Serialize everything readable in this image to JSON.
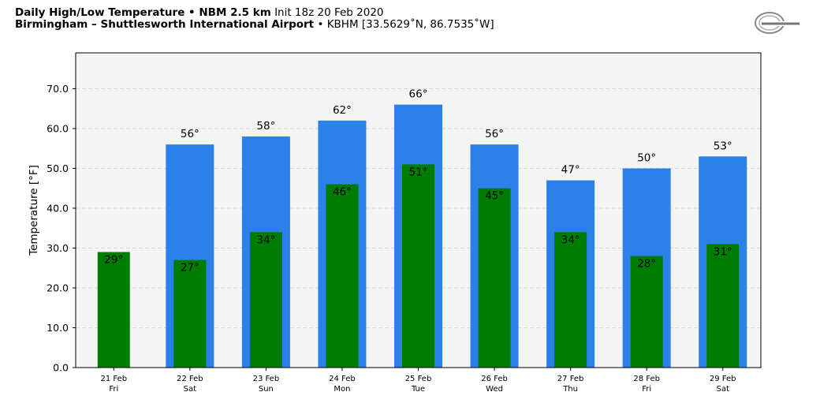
{
  "header": {
    "title_bold": "Daily High/Low Temperature • NBM 2.5 km",
    "title_rest": "Init 18z 20 Feb 2020",
    "location_bold": "Birmingham – Shuttlesworth International Airport",
    "location_rest": "• KBHM [33.5629˚N, 86.7535˚W]"
  },
  "logo": {
    "icon": "weatherbell-logo"
  },
  "chart_data": {
    "type": "bar",
    "ylabel": "Temperature [°F]",
    "xlabel": "",
    "ylim": [
      0,
      79
    ],
    "yticks": [
      "0.0",
      "10.0",
      "20.0",
      "30.0",
      "40.0",
      "50.0",
      "60.0",
      "70.0"
    ],
    "grid": true,
    "categories": [
      {
        "date": "21 Feb",
        "day": "Fri"
      },
      {
        "date": "22 Feb",
        "day": "Sat"
      },
      {
        "date": "23 Feb",
        "day": "Sun"
      },
      {
        "date": "24 Feb",
        "day": "Mon"
      },
      {
        "date": "25 Feb",
        "day": "Tue"
      },
      {
        "date": "26 Feb",
        "day": "Wed"
      },
      {
        "date": "27 Feb",
        "day": "Thu"
      },
      {
        "date": "28 Feb",
        "day": "Fri"
      },
      {
        "date": "29 Feb",
        "day": "Sat"
      }
    ],
    "series": [
      {
        "values": [
          null,
          56,
          58,
          62,
          66,
          56,
          47,
          50,
          53
        ],
        "labels": [
          "",
          "56°",
          "58°",
          "62°",
          "66°",
          "56°",
          "47°",
          "50°",
          "53°"
        ],
        "color": "#2b80ea"
      },
      {
        "values": [
          29,
          27,
          34,
          46,
          51,
          45,
          34,
          28,
          31
        ],
        "labels": [
          "29°",
          "27°",
          "34°",
          "46°",
          "51°",
          "45°",
          "34°",
          "28°",
          "31°"
        ],
        "color": "#007d00"
      }
    ],
    "plot_background": "#f4f4f4"
  }
}
